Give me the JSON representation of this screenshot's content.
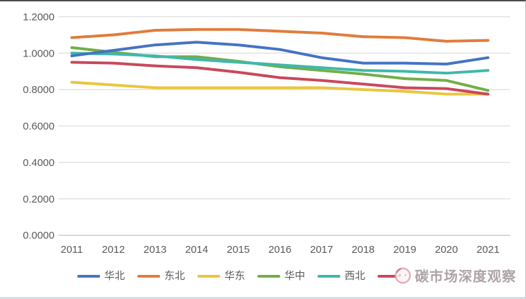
{
  "watermark": {
    "text": "碳市场深度观察"
  },
  "axes": {
    "yticks": [
      "1.2000",
      "1.0000",
      "0.8000",
      "0.6000",
      "0.4000",
      "0.2000",
      "0.0000"
    ],
    "xticks": [
      "2011",
      "2012",
      "2013",
      "2014",
      "2015",
      "2016",
      "2017",
      "2018",
      "2019",
      "2020",
      "2021"
    ]
  },
  "chart_data": {
    "type": "line",
    "title": "",
    "xlabel": "",
    "ylabel": "",
    "x": [
      2011,
      2012,
      2013,
      2014,
      2015,
      2016,
      2017,
      2018,
      2019,
      2020,
      2021
    ],
    "series": [
      {
        "name": "华北",
        "color": "#4573C4",
        "values": [
          0.985,
          1.015,
          1.045,
          1.06,
          1.045,
          1.02,
          0.975,
          0.945,
          0.945,
          0.94,
          0.975
        ]
      },
      {
        "name": "东北",
        "color": "#E07C3A",
        "values": [
          1.085,
          1.1,
          1.125,
          1.13,
          1.13,
          1.12,
          1.11,
          1.09,
          1.085,
          1.065,
          1.07
        ]
      },
      {
        "name": "华东",
        "color": "#E9C63F",
        "values": [
          0.84,
          0.825,
          0.81,
          0.81,
          0.81,
          0.81,
          0.81,
          0.8,
          0.79,
          0.775,
          0.775
        ]
      },
      {
        "name": "华中",
        "color": "#72AE49",
        "values": [
          1.03,
          1.005,
          0.98,
          0.98,
          0.955,
          0.925,
          0.905,
          0.885,
          0.86,
          0.85,
          0.795
        ]
      },
      {
        "name": "西北",
        "color": "#3FB8AB",
        "values": [
          1.0,
          0.995,
          0.985,
          0.965,
          0.95,
          0.935,
          0.92,
          0.905,
          0.9,
          0.89,
          0.905
        ]
      },
      {
        "name": "",
        "color": "#C9485C",
        "values": [
          0.95,
          0.945,
          0.93,
          0.92,
          0.895,
          0.865,
          0.85,
          0.83,
          0.81,
          0.805,
          0.775
        ]
      }
    ],
    "ylim": [
      0.0,
      1.2
    ],
    "ytick_step": 0.2,
    "grid": true,
    "legend_position": "bottom"
  }
}
